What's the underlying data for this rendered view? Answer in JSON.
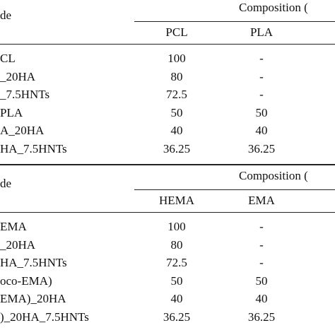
{
  "tables": [
    {
      "code": "de",
      "composition": "Composition (",
      "columns": [
        "PCL",
        "PLA"
      ],
      "rows": [
        [
          "CL",
          "100",
          "-"
        ],
        [
          "_20HA",
          "80",
          "-"
        ],
        [
          "_7.5HNTs",
          "72.5",
          "-"
        ],
        [
          "PLA",
          "50",
          "50"
        ],
        [
          "A_20HA",
          "40",
          "40"
        ],
        [
          "HA_7.5HNTs",
          "36.25",
          "36.25"
        ]
      ]
    },
    {
      "code": "de",
      "composition": "Composition (",
      "columns": [
        "HEMA",
        "EMA"
      ],
      "rows": [
        [
          "EMA",
          "100",
          "-"
        ],
        [
          "_20HA",
          "80",
          "-"
        ],
        [
          "HA_7.5HNTs",
          "72.5",
          "-"
        ],
        [
          "oco-EMA)",
          "50",
          "50"
        ],
        [
          "EMA)_20HA",
          "40",
          "40"
        ],
        [
          ")_20HA_7.5HNTs",
          "36.25",
          "36.25"
        ]
      ]
    }
  ]
}
